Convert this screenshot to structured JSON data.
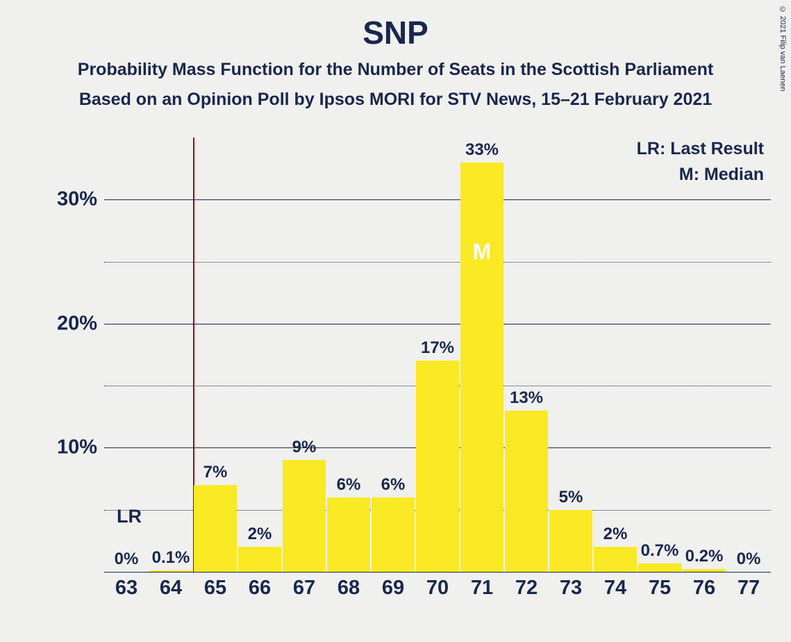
{
  "title": "SNP",
  "subtitle1": "Probability Mass Function for the Number of Seats in the Scottish Parliament",
  "subtitle2": "Based on an Opinion Poll by Ipsos MORI for STV News, 15–21 February 2021",
  "copyright": "© 2021 Filip van Laenen",
  "legend": {
    "lr": "LR: Last Result",
    "m": "M: Median"
  },
  "chart": {
    "type": "bar",
    "bar_color": "#fae925",
    "background_color": "#f0f0ee",
    "grid_color": "#19274d",
    "text_color": "#19274d",
    "lr_line_color": "#a4000f",
    "ylim": [
      0,
      35
    ],
    "y_major_ticks": [
      10,
      20,
      30
    ],
    "y_minor_ticks": [
      5,
      15,
      25
    ],
    "categories": [
      "63",
      "64",
      "65",
      "66",
      "67",
      "68",
      "69",
      "70",
      "71",
      "72",
      "73",
      "74",
      "75",
      "76",
      "77"
    ],
    "values": [
      0,
      0.1,
      7,
      2,
      9,
      6,
      6,
      17,
      33,
      13,
      5,
      2,
      0.7,
      0.2,
      0
    ],
    "value_labels": [
      "0%",
      "0.1%",
      "7%",
      "2%",
      "9%",
      "6%",
      "6%",
      "17%",
      "33%",
      "13%",
      "5%",
      "2%",
      "0.7%",
      "0.2%",
      "0%"
    ],
    "lr_position_after_index": 1,
    "lr_label": "LR",
    "median_index": 8,
    "median_label": "M",
    "title_fontsize": 46,
    "subtitle_fontsize": 25,
    "axis_fontsize": 29,
    "barlabel_fontsize": 24
  }
}
